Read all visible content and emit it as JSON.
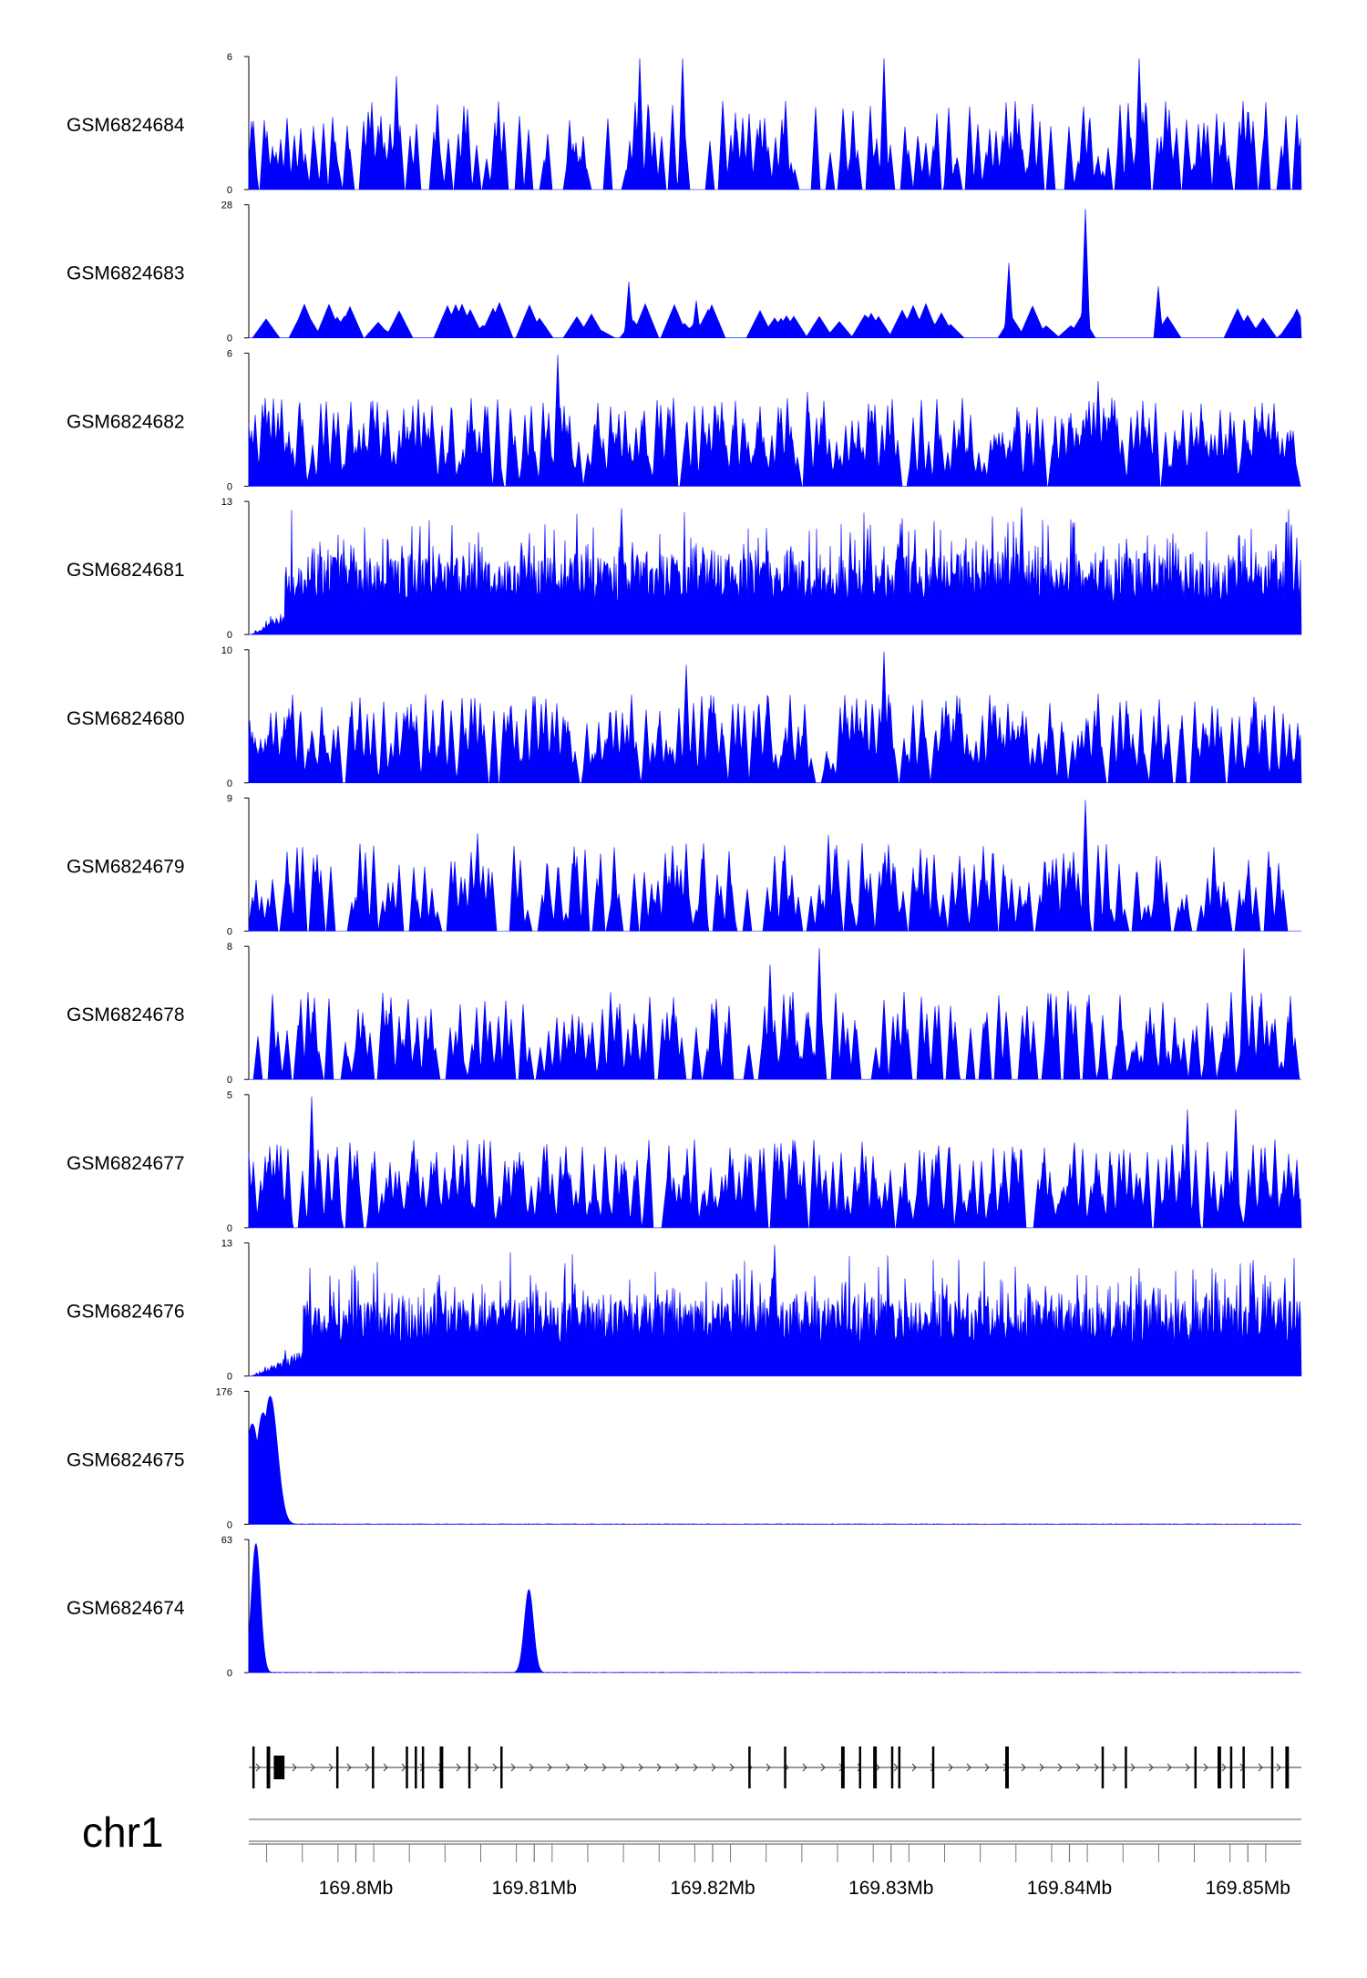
{
  "chart_data": {
    "type": "area",
    "title": "",
    "chromosome": "chr1",
    "x_unit": "Mb",
    "xlim": [
      169.794,
      169.853
    ],
    "x_ticks": [
      169.8,
      169.81,
      169.82,
      169.83,
      169.84,
      169.85
    ],
    "x_tick_labels": [
      "169.8Mb",
      "169.81Mb",
      "169.82Mb",
      "169.83Mb",
      "169.84Mb",
      "169.85Mb"
    ],
    "fill_color": "#0000ff",
    "tracks": [
      {
        "name": "GSM6824684",
        "ymax": 6,
        "ymax_label": "6",
        "ymin_label": "0",
        "profile": "spiky-sparse",
        "seed": 11,
        "peaks": [
          {
            "x": 169.8023,
            "y": 5.2
          },
          {
            "x": 169.8159,
            "y": 6.0
          },
          {
            "x": 169.8183,
            "y": 6.0
          },
          {
            "x": 169.8296,
            "y": 6.0
          },
          {
            "x": 169.8439,
            "y": 6.0
          }
        ]
      },
      {
        "name": "GSM6824683",
        "ymax": 28,
        "ymax_label": "28",
        "ymin_label": "0",
        "profile": "sparse-triangles",
        "seed": 23,
        "peaks": [
          {
            "x": 169.8153,
            "y": 12.0
          },
          {
            "x": 169.8366,
            "y": 16.0
          },
          {
            "x": 169.8409,
            "y": 27.5
          },
          {
            "x": 169.845,
            "y": 11.0
          },
          {
            "x": 169.8191,
            "y": 8.0
          }
        ]
      },
      {
        "name": "GSM6824682",
        "ymax": 6,
        "ymax_label": "6",
        "ymin_label": "0",
        "profile": "spiky-dense",
        "seed": 37,
        "peaks": [
          {
            "x": 169.8113,
            "y": 6.0
          },
          {
            "x": 169.8416,
            "y": 4.8
          },
          {
            "x": 169.8253,
            "y": 4.3
          }
        ]
      },
      {
        "name": "GSM6824681",
        "ymax": 13,
        "ymax_label": "13",
        "ymin_label": "0",
        "profile": "dense-broad",
        "seed": 41,
        "peaks": [
          {
            "x": 169.8149,
            "y": 12.5
          },
          {
            "x": 169.8373,
            "y": 12.6
          },
          {
            "x": 169.8305,
            "y": 11.0
          },
          {
            "x": 169.8287,
            "y": 10.5
          }
        ]
      },
      {
        "name": "GSM6824680",
        "ymax": 10,
        "ymax_label": "10",
        "ymin_label": "0",
        "profile": "spiky-dense",
        "seed": 53,
        "peaks": [
          {
            "x": 169.8296,
            "y": 10.0
          },
          {
            "x": 169.8185,
            "y": 9.0
          },
          {
            "x": 169.8416,
            "y": 6.8
          },
          {
            "x": 169.847,
            "y": 6.2
          }
        ]
      },
      {
        "name": "GSM6824679",
        "ymax": 9,
        "ymax_label": "9",
        "ymin_label": "0",
        "profile": "spiky-sparse",
        "seed": 61,
        "peaks": [
          {
            "x": 169.8409,
            "y": 9.0
          },
          {
            "x": 169.8265,
            "y": 6.6
          },
          {
            "x": 169.8068,
            "y": 6.7
          }
        ]
      },
      {
        "name": "GSM6824678",
        "ymax": 8,
        "ymax_label": "8",
        "ymin_label": "0",
        "profile": "spiky-sparse",
        "seed": 71,
        "peaks": [
          {
            "x": 169.826,
            "y": 8.0
          },
          {
            "x": 169.8498,
            "y": 8.0
          },
          {
            "x": 169.8232,
            "y": 7.0
          }
        ]
      },
      {
        "name": "GSM6824677",
        "ymax": 5,
        "ymax_label": "5",
        "ymin_label": "0",
        "profile": "spiky-dense",
        "seed": 83,
        "peaks": [
          {
            "x": 169.7975,
            "y": 5.0
          },
          {
            "x": 169.8493,
            "y": 4.5
          },
          {
            "x": 169.8466,
            "y": 4.5
          }
        ]
      },
      {
        "name": "GSM6824676",
        "ymax": 13,
        "ymax_label": "13",
        "ymin_label": "0",
        "profile": "dense-broad-rising",
        "seed": 97,
        "peaks": [
          {
            "x": 169.8235,
            "y": 13.0
          },
          {
            "x": 169.8222,
            "y": 10.5
          },
          {
            "x": 169.8503,
            "y": 11.5
          },
          {
            "x": 169.8047,
            "y": 10.0
          }
        ]
      },
      {
        "name": "GSM6824675",
        "ymax": 176,
        "ymax_label": "176",
        "ymin_label": "0",
        "profile": "single-dominant",
        "seed": 101,
        "peaks": [
          {
            "x": 169.7952,
            "y": 172
          },
          {
            "x": 169.7942,
            "y": 135
          },
          {
            "x": 169.7948,
            "y": 150
          }
        ]
      },
      {
        "name": "GSM6824674",
        "ymax": 63,
        "ymax_label": "63",
        "ymin_label": "0",
        "profile": "two-dominant",
        "seed": 113,
        "peaks": [
          {
            "x": 169.7944,
            "y": 62
          },
          {
            "x": 169.8097,
            "y": 40
          }
        ]
      }
    ],
    "gene_track": {
      "strand": "+",
      "start": 169.794,
      "end": 169.853,
      "exons": [
        {
          "start": 169.7942,
          "end": 169.7943
        },
        {
          "start": 169.795,
          "end": 169.7952
        },
        {
          "start": 169.7954,
          "end": 169.796
        },
        {
          "start": 169.7989,
          "end": 169.799
        },
        {
          "start": 169.8009,
          "end": 169.801
        },
        {
          "start": 169.8028,
          "end": 169.8029
        },
        {
          "start": 169.8033,
          "end": 169.8034
        },
        {
          "start": 169.8037,
          "end": 169.8038
        },
        {
          "start": 169.8047,
          "end": 169.8049
        },
        {
          "start": 169.8063,
          "end": 169.8064
        },
        {
          "start": 169.8081,
          "end": 169.8082
        },
        {
          "start": 169.822,
          "end": 169.8221
        },
        {
          "start": 169.824,
          "end": 169.8241
        },
        {
          "start": 169.8272,
          "end": 169.8274
        },
        {
          "start": 169.8282,
          "end": 169.8283
        },
        {
          "start": 169.829,
          "end": 169.8292
        },
        {
          "start": 169.83,
          "end": 169.8301
        },
        {
          "start": 169.8304,
          "end": 169.8305
        },
        {
          "start": 169.8323,
          "end": 169.8324
        },
        {
          "start": 169.8364,
          "end": 169.8366
        },
        {
          "start": 169.8418,
          "end": 169.8419
        },
        {
          "start": 169.8431,
          "end": 169.8432
        },
        {
          "start": 169.847,
          "end": 169.8471
        },
        {
          "start": 169.8483,
          "end": 169.8485
        },
        {
          "start": 169.849,
          "end": 169.8491
        },
        {
          "start": 169.8497,
          "end": 169.8498
        },
        {
          "start": 169.8513,
          "end": 169.8514
        },
        {
          "start": 169.8521,
          "end": 169.8523
        }
      ]
    }
  }
}
